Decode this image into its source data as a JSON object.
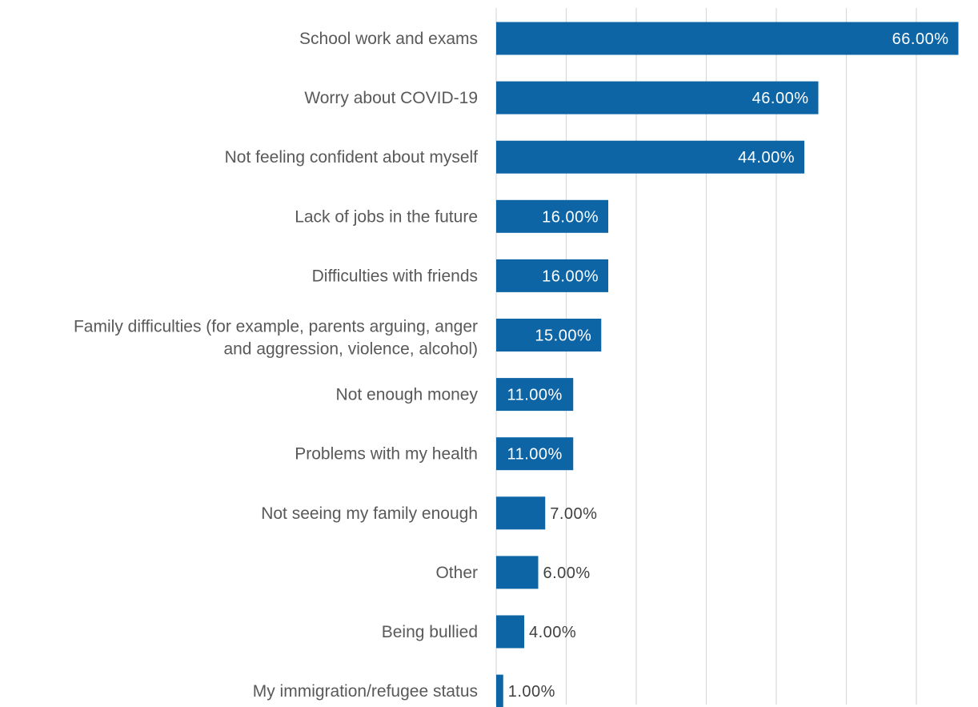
{
  "chart_data": {
    "type": "bar",
    "orientation": "horizontal",
    "categories": [
      "School work and exams",
      "Worry about COVID-19",
      "Not feeling confident about myself",
      "Lack of jobs in the future",
      "Difficulties with friends",
      "Family difficulties (for example, parents arguing, anger and aggression, violence, alcohol)",
      "Not enough money",
      "Problems with my health",
      "Not seeing my family enough",
      "Other",
      "Being bullied",
      "My immigration/refugee status"
    ],
    "values": [
      66,
      46,
      44,
      16,
      16,
      15,
      11,
      11,
      7,
      6,
      4,
      1
    ],
    "data_labels": [
      "66.00%",
      "46.00%",
      "44.00%",
      "16.00%",
      "16.00%",
      "15.00%",
      "11.00%",
      "11.00%",
      "7.00%",
      "6.00%",
      "4.00%",
      "1.00%"
    ],
    "xlim": [
      0,
      70
    ],
    "grid": true,
    "bar_color": "#0e65a6",
    "inside_label_color": "#ffffff",
    "outside_label_color": "#404040",
    "title": "",
    "xlabel": "",
    "ylabel": ""
  }
}
